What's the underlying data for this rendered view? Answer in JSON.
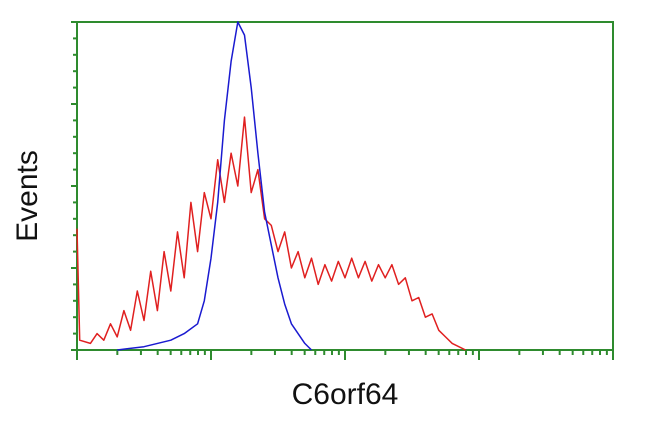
{
  "chart_data": {
    "type": "line",
    "title": "",
    "xlabel": "C6orf64",
    "ylabel": "Events",
    "x_scale": "log",
    "x_decades": 4,
    "xlim_decades": [
      0,
      4
    ],
    "ylim": [
      0,
      100
    ],
    "tick_labels_shown": false,
    "grid": false,
    "colors": {
      "axes": "#2e8b2e",
      "red_series": "#e02020",
      "blue_series": "#1a1ad0"
    },
    "series": [
      {
        "color": "red",
        "x": [
          0.0,
          0.02,
          0.1,
          0.15,
          0.2,
          0.25,
          0.3,
          0.35,
          0.4,
          0.45,
          0.5,
          0.55,
          0.6,
          0.65,
          0.7,
          0.75,
          0.8,
          0.85,
          0.9,
          0.95,
          1.0,
          1.05,
          1.1,
          1.15,
          1.2,
          1.25,
          1.3,
          1.35,
          1.4,
          1.45,
          1.5,
          1.55,
          1.6,
          1.65,
          1.7,
          1.75,
          1.8,
          1.85,
          1.9,
          1.95,
          2.0,
          2.05,
          2.1,
          2.15,
          2.2,
          2.25,
          2.3,
          2.35,
          2.4,
          2.45,
          2.5,
          2.55,
          2.6,
          2.65,
          2.7,
          2.75,
          2.8,
          2.9
        ],
        "y": [
          37,
          3,
          2,
          5,
          3,
          8,
          4,
          12,
          6,
          18,
          9,
          24,
          12,
          30,
          18,
          36,
          22,
          45,
          30,
          48,
          40,
          58,
          45,
          60,
          50,
          71,
          48,
          55,
          40,
          38,
          30,
          36,
          25,
          30,
          22,
          28,
          20,
          26,
          21,
          27,
          22,
          28,
          22,
          27,
          21,
          26,
          22,
          26,
          20,
          22,
          15,
          16,
          10,
          11,
          6,
          4,
          2,
          0
        ]
      },
      {
        "color": "blue",
        "x": [
          0.3,
          0.5,
          0.7,
          0.8,
          0.9,
          0.95,
          1.0,
          1.05,
          1.1,
          1.15,
          1.2,
          1.25,
          1.3,
          1.35,
          1.4,
          1.45,
          1.5,
          1.55,
          1.6,
          1.7,
          1.75
        ],
        "y": [
          0,
          1,
          3,
          5,
          8,
          15,
          28,
          45,
          70,
          88,
          100,
          96,
          80,
          60,
          42,
          32,
          22,
          14,
          8,
          2,
          0
        ]
      }
    ]
  }
}
